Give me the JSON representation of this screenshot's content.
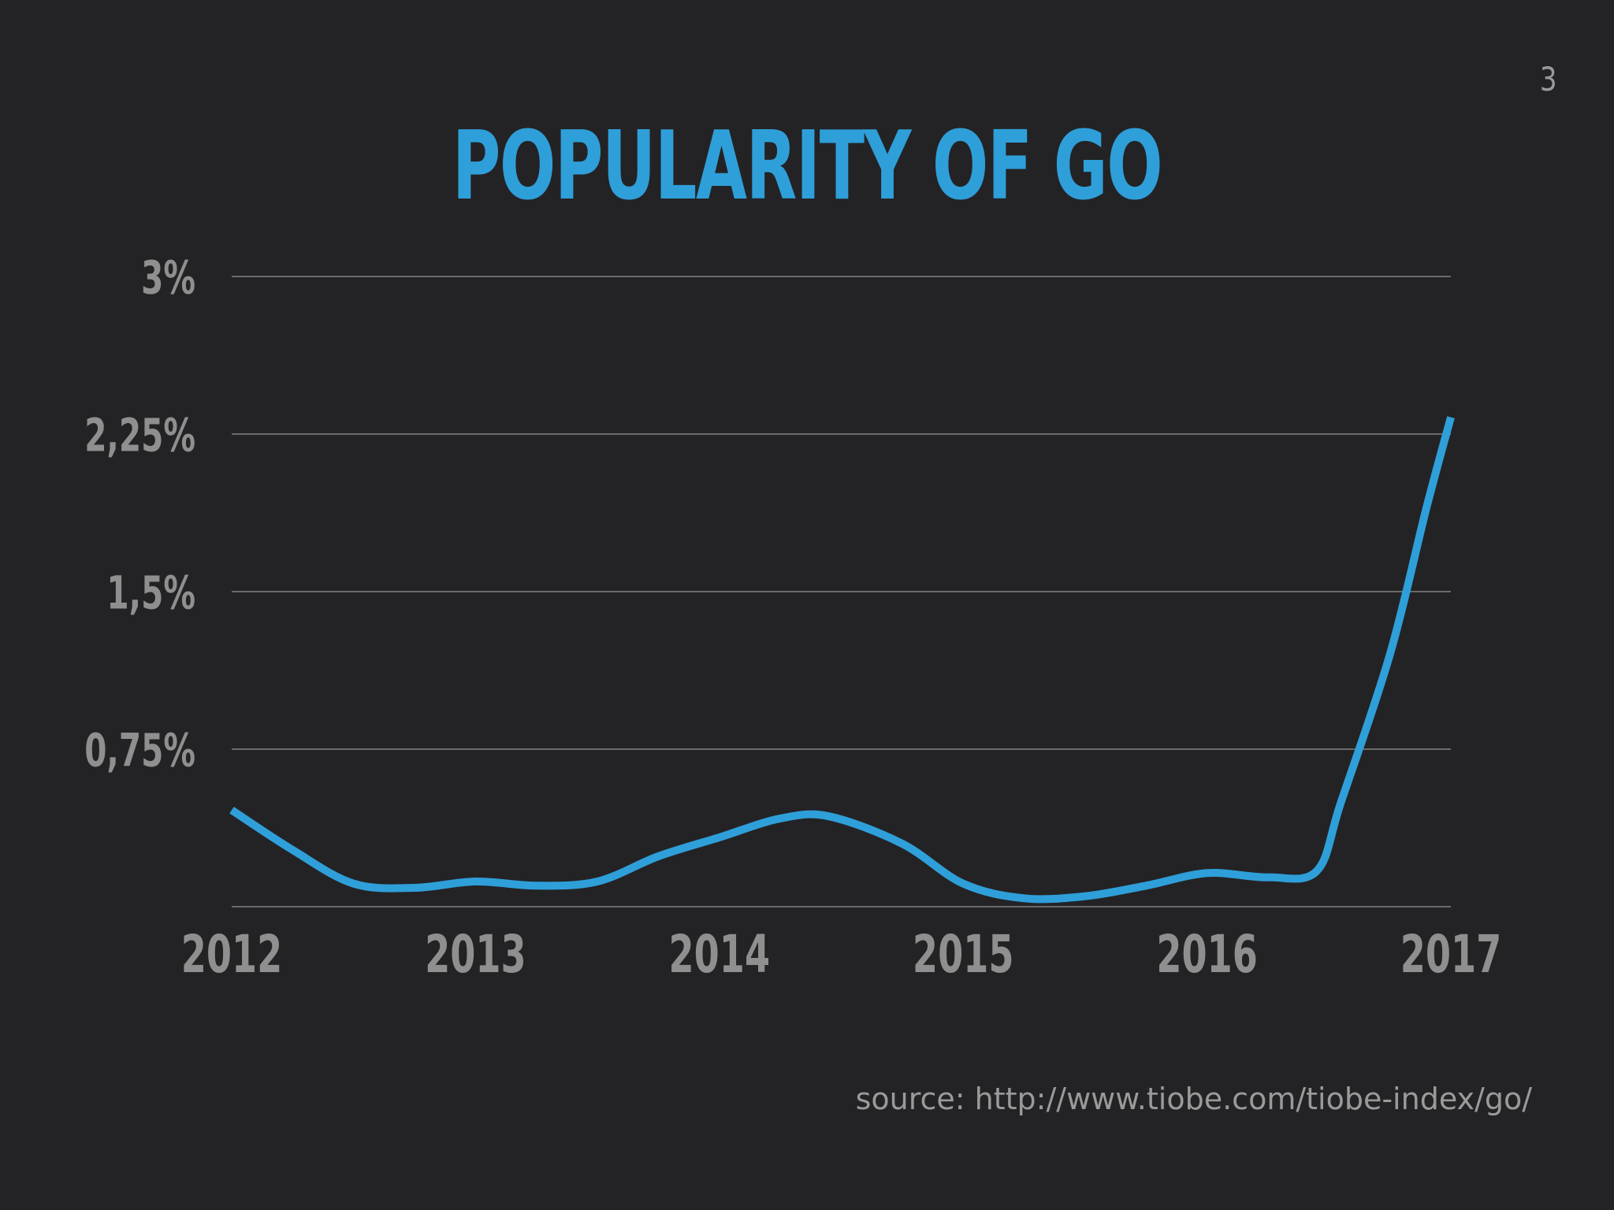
{
  "slide": {
    "number": "3",
    "title": "POPULARITY OF GO",
    "source": "source: http://www.tiobe.com/tiobe-index/go/"
  },
  "colors": {
    "background": "#232325",
    "line": "#2f9fd9",
    "grid": "#6a6a6a",
    "tick_text": "#8f8f8f"
  },
  "chart_data": {
    "type": "line",
    "title": "POPULARITY OF GO",
    "xlabel": "",
    "ylabel": "",
    "x_ticks": [
      "2012",
      "2013",
      "2014",
      "2015",
      "2016",
      "2017"
    ],
    "y_ticks": [
      {
        "value": 0.75,
        "label": "0,75%"
      },
      {
        "value": 1.5,
        "label": "1,5%"
      },
      {
        "value": 2.25,
        "label": "2,25%"
      },
      {
        "value": 3,
        "label": "3%"
      }
    ],
    "xlim": [
      2012,
      2017
    ],
    "ylim": [
      0,
      3
    ],
    "grid": true,
    "series": [
      {
        "x": [
          2012.0,
          2012.25,
          2012.5,
          2012.75,
          2013.0,
          2013.25,
          2013.5,
          2013.75,
          2014.0,
          2014.25,
          2014.45,
          2014.75,
          2015.0,
          2015.25,
          2015.5,
          2015.75,
          2016.0,
          2016.25,
          2016.45,
          2016.55,
          2016.75,
          2016.9,
          2017.0
        ],
        "y": [
          0.46,
          0.27,
          0.11,
          0.09,
          0.12,
          0.1,
          0.12,
          0.24,
          0.33,
          0.42,
          0.43,
          0.3,
          0.11,
          0.04,
          0.05,
          0.1,
          0.16,
          0.14,
          0.17,
          0.5,
          1.2,
          1.9,
          2.33
        ]
      }
    ]
  }
}
